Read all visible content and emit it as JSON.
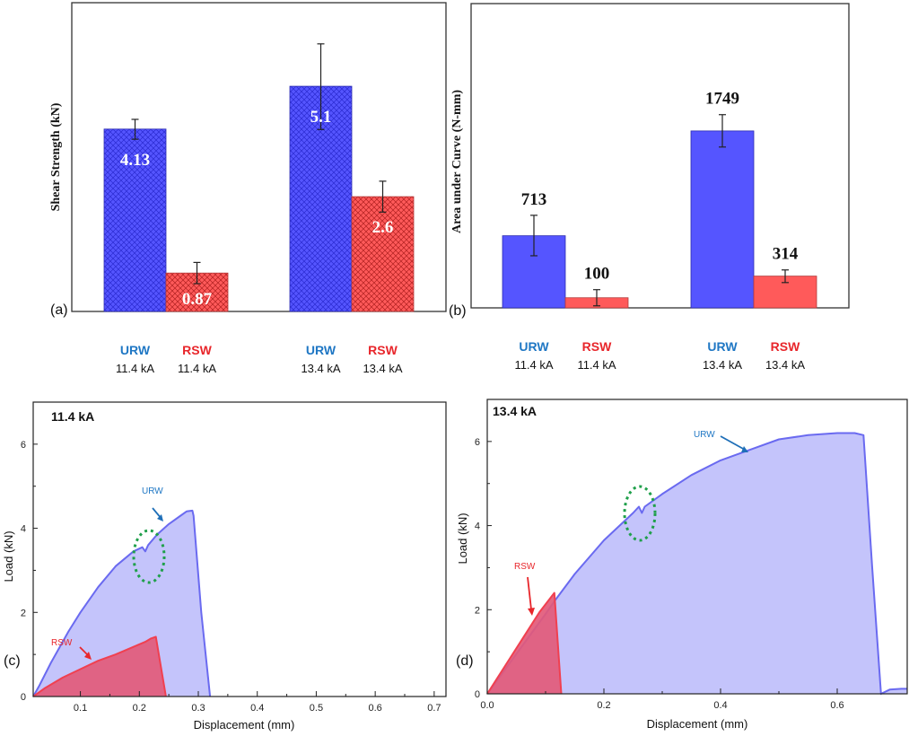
{
  "colors": {
    "urw": "#5555ff",
    "urw_hatch": "#2a2ad0",
    "rsw": "#ff5a5a",
    "rsw_hatch": "#b02020",
    "urw_label": "#1f77c4",
    "rsw_label": "#e8262b",
    "urw_fill_area": "#c4c4fb",
    "urw_line": "#6a6af0",
    "rsw_fill_area": "#e25a7a",
    "rsw_line": "#f04050",
    "ellipse": "#1fa04a"
  },
  "chart_data": [
    {
      "id": "a",
      "type": "bar",
      "panel_label": "(a)",
      "ylabel": "Shear Strength (kN)",
      "hatched": true,
      "ylim": [
        0,
        7
      ],
      "value_label_position": "inside",
      "groups": [
        {
          "condition": "11.4 kA",
          "bars": [
            {
              "name": "URW",
              "sub": "11.4 kA",
              "value": 4.13,
              "label": "4.13",
              "err_low": 3.9,
              "err_high": 4.35
            },
            {
              "name": "RSW",
              "sub": "11.4 kA",
              "value": 0.87,
              "label": "0.87",
              "err_low": 0.63,
              "err_high": 1.11
            }
          ]
        },
        {
          "condition": "13.4 kA",
          "bars": [
            {
              "name": "URW",
              "sub": "13.4 kA",
              "value": 5.1,
              "label": "5.1",
              "err_low": 4.12,
              "err_high": 6.06
            },
            {
              "name": "RSW",
              "sub": "13.4 kA",
              "value": 2.6,
              "label": "2.6",
              "err_low": 2.25,
              "err_high": 2.95
            }
          ]
        }
      ]
    },
    {
      "id": "b",
      "type": "bar",
      "panel_label": "(b)",
      "ylabel": "Area under Curve (N-mm)",
      "hatched": false,
      "ylim": [
        0,
        3000
      ],
      "value_label_position": "above",
      "groups": [
        {
          "condition": "11.4 kA",
          "bars": [
            {
              "name": "URW",
              "sub": "11.4 kA",
              "value": 713,
              "label": "713",
              "err_low": 515,
              "err_high": 915
            },
            {
              "name": "RSW",
              "sub": "11.4 kA",
              "value": 100,
              "label": "100",
              "err_low": 20,
              "err_high": 180
            }
          ]
        },
        {
          "condition": "13.4 kA",
          "bars": [
            {
              "name": "URW",
              "sub": "13.4 kA",
              "value": 1749,
              "label": "1749",
              "err_low": 1590,
              "err_high": 1910
            },
            {
              "name": "RSW",
              "sub": "13.4 kA",
              "value": 314,
              "label": "314",
              "err_low": 250,
              "err_high": 375
            }
          ]
        }
      ]
    },
    {
      "id": "c",
      "type": "area",
      "panel_label": "(c)",
      "title": "11.4 kA",
      "xlabel": "Displacement (mm)",
      "ylabel": "Load (kN)",
      "xlim": [
        0.02,
        0.72
      ],
      "ylim": [
        0,
        7
      ],
      "xticks": [
        0.1,
        0.2,
        0.3,
        0.4,
        0.5,
        0.6,
        0.7
      ],
      "xtick_labels": [
        "0.1",
        "0.2",
        "0.3",
        "0.4",
        "0.5",
        "0.6",
        "0.7"
      ],
      "yticks": [
        0,
        2,
        4,
        6
      ],
      "ytick_labels": [
        "0",
        "2",
        "4",
        "6"
      ],
      "series": [
        {
          "name": "URW",
          "x": [
            0.02,
            0.03,
            0.05,
            0.08,
            0.1,
            0.13,
            0.16,
            0.19,
            0.205,
            0.21,
            0.215,
            0.23,
            0.25,
            0.27,
            0.28,
            0.29,
            0.292,
            0.305,
            0.32
          ],
          "y": [
            0.0,
            0.25,
            0.8,
            1.55,
            2.0,
            2.6,
            3.1,
            3.45,
            3.55,
            3.45,
            3.6,
            3.85,
            4.1,
            4.3,
            4.4,
            4.42,
            4.3,
            2.0,
            0.0
          ]
        },
        {
          "name": "RSW",
          "x": [
            0.02,
            0.04,
            0.07,
            0.1,
            0.13,
            0.16,
            0.19,
            0.21,
            0.22,
            0.228,
            0.245
          ],
          "y": [
            0.0,
            0.2,
            0.45,
            0.65,
            0.85,
            1.0,
            1.18,
            1.3,
            1.38,
            1.42,
            0.0
          ]
        }
      ],
      "annotations": [
        {
          "text": "URW",
          "target_series": "URW",
          "arrow": true
        },
        {
          "text": "RSW",
          "target_series": "RSW",
          "arrow": true
        },
        {
          "text": "",
          "shape": "dotted-ellipse",
          "center_x": 0.21,
          "center_y": 3.4
        }
      ]
    },
    {
      "id": "d",
      "type": "area",
      "panel_label": "(d)",
      "title": "13.4 kA",
      "xlabel": "Displacement (mm)",
      "ylabel": "Load (kN)",
      "xlim": [
        0.0,
        0.72
      ],
      "ylim": [
        0,
        7
      ],
      "xticks": [
        0.0,
        0.2,
        0.4,
        0.6
      ],
      "xtick_labels": [
        "0.0",
        "0.2",
        "0.4",
        "0.6"
      ],
      "yticks": [
        0,
        2,
        4,
        6
      ],
      "ytick_labels": [
        "0",
        "2",
        "4",
        "6"
      ],
      "series": [
        {
          "name": "URW",
          "x": [
            0.0,
            0.05,
            0.1,
            0.115,
            0.15,
            0.2,
            0.25,
            0.26,
            0.265,
            0.27,
            0.3,
            0.35,
            0.4,
            0.45,
            0.5,
            0.55,
            0.6,
            0.63,
            0.645,
            0.66,
            0.675,
            0.69,
            0.71,
            0.72
          ],
          "y": [
            0.0,
            0.95,
            1.9,
            2.2,
            2.85,
            3.65,
            4.3,
            4.45,
            4.3,
            4.45,
            4.75,
            5.2,
            5.55,
            5.8,
            6.05,
            6.15,
            6.2,
            6.2,
            6.15,
            3.0,
            0.0,
            0.1,
            0.12,
            0.12
          ]
        },
        {
          "name": "RSW",
          "x": [
            0.0,
            0.03,
            0.06,
            0.09,
            0.115,
            0.127
          ],
          "y": [
            0.0,
            0.65,
            1.3,
            1.95,
            2.4,
            0.0
          ]
        }
      ],
      "annotations": [
        {
          "text": "URW",
          "target_series": "URW",
          "arrow": true
        },
        {
          "text": "RSW",
          "target_series": "RSW",
          "arrow": true
        },
        {
          "text": "",
          "shape": "dotted-ellipse",
          "center_x": 0.26,
          "center_y": 4.3
        }
      ]
    }
  ]
}
